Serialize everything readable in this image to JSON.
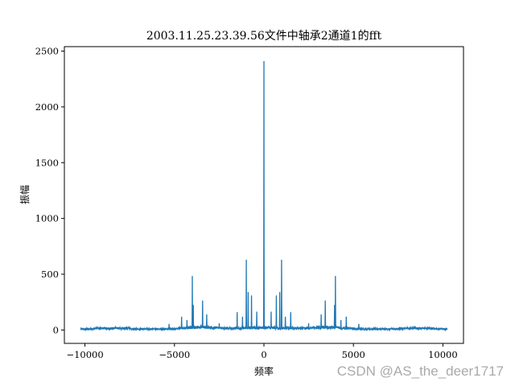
{
  "watermark": "CSDN @AS_the_deer1717",
  "chart_data": {
    "type": "line",
    "title": "2003.11.25.23.39.56文件中轴承2通道1的fft",
    "xlabel": "频率",
    "ylabel": "振幅",
    "xlim": [
      -11150,
      11150
    ],
    "ylim": [
      -120,
      2540
    ],
    "xticks": [
      -10000,
      -5000,
      0,
      5000,
      10000
    ],
    "yticks": [
      0,
      500,
      1000,
      1500,
      2000,
      2500
    ],
    "xtick_labels": [
      "−10000",
      "−5000",
      "0",
      "5000",
      "10000"
    ],
    "ytick_labels": [
      "0",
      "500",
      "1000",
      "1500",
      "2000",
      "2500"
    ],
    "line_color": "#1f77b4",
    "grid": false,
    "x_range": [
      -10240,
      10240
    ],
    "baseline_amplitude": 12,
    "peaks": [
      {
        "x": 0,
        "y": 2410
      },
      {
        "x": -986,
        "y": 630
      },
      {
        "x": 986,
        "y": 630
      },
      {
        "x": -4000,
        "y": 485
      },
      {
        "x": 3990,
        "y": 485
      },
      {
        "x": -880,
        "y": 340
      },
      {
        "x": 880,
        "y": 340
      },
      {
        "x": -690,
        "y": 310
      },
      {
        "x": 690,
        "y": 310
      },
      {
        "x": -3430,
        "y": 265
      },
      {
        "x": 3430,
        "y": 265
      },
      {
        "x": -3950,
        "y": 225
      },
      {
        "x": 3950,
        "y": 225
      },
      {
        "x": -1500,
        "y": 160
      },
      {
        "x": 1500,
        "y": 160
      },
      {
        "x": -400,
        "y": 165
      },
      {
        "x": 400,
        "y": 165
      },
      {
        "x": -1200,
        "y": 120
      },
      {
        "x": 1200,
        "y": 120
      },
      {
        "x": -3200,
        "y": 140
      },
      {
        "x": 3200,
        "y": 140
      },
      {
        "x": -4600,
        "y": 120
      },
      {
        "x": 4600,
        "y": 120
      },
      {
        "x": -4300,
        "y": 90
      },
      {
        "x": 4300,
        "y": 90
      },
      {
        "x": -2500,
        "y": 60
      },
      {
        "x": 2500,
        "y": 60
      },
      {
        "x": -5300,
        "y": 55
      },
      {
        "x": 5300,
        "y": 55
      }
    ]
  }
}
